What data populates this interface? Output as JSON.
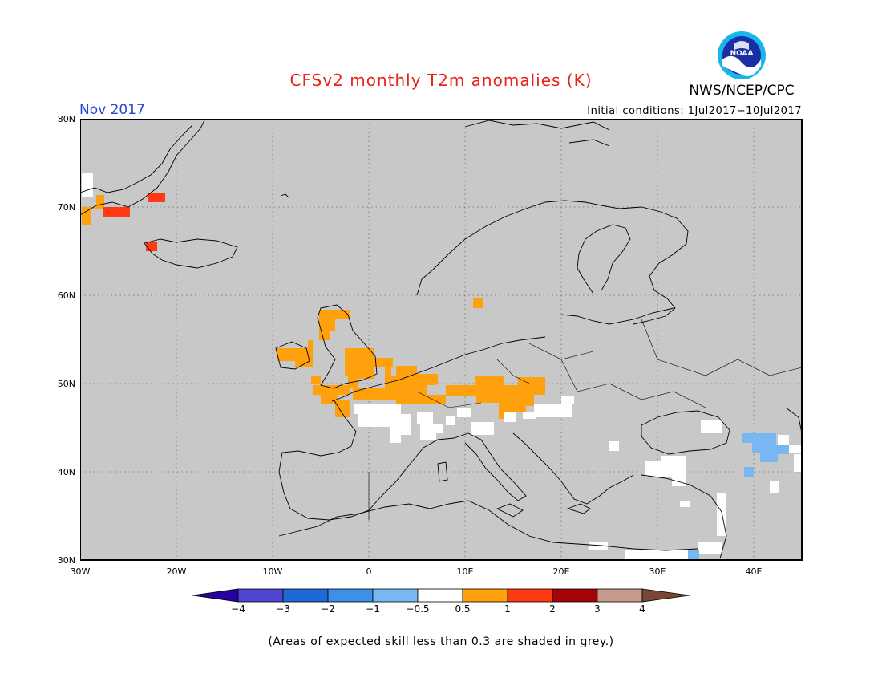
{
  "header": {
    "title": "CFSv2 monthly T2m anomalies (K)",
    "org": "NWS/NCEP/CPC",
    "logo_text": "NOAA",
    "month": "Nov 2017",
    "initial_conditions": "Initial conditions: 1Jul2017−10Jul2017"
  },
  "axes": {
    "lat_labels": [
      "80N",
      "70N",
      "60N",
      "50N",
      "40N",
      "30N"
    ],
    "lon_labels": [
      "30W",
      "20W",
      "10W",
      "0",
      "10E",
      "20E",
      "30E",
      "40E"
    ]
  },
  "colorbar": {
    "tick_labels": [
      "−4",
      "−3",
      "−2",
      "−1",
      "−0.5",
      "0.5",
      "1",
      "2",
      "3",
      "4"
    ],
    "colors": [
      "#2a00a3",
      "#5045d3",
      "#1f68d8",
      "#3d8fe8",
      "#79b7f2",
      "#ffffff",
      "#ffa10c",
      "#ff3a10",
      "#a40408",
      "#c79b8b",
      "#7a4632"
    ]
  },
  "map_colors": {
    "background": "#c8c8c8",
    "coast": "#000000"
  },
  "footnote": "(Areas of expected skill less than 0.3 are shaded in grey.)"
}
